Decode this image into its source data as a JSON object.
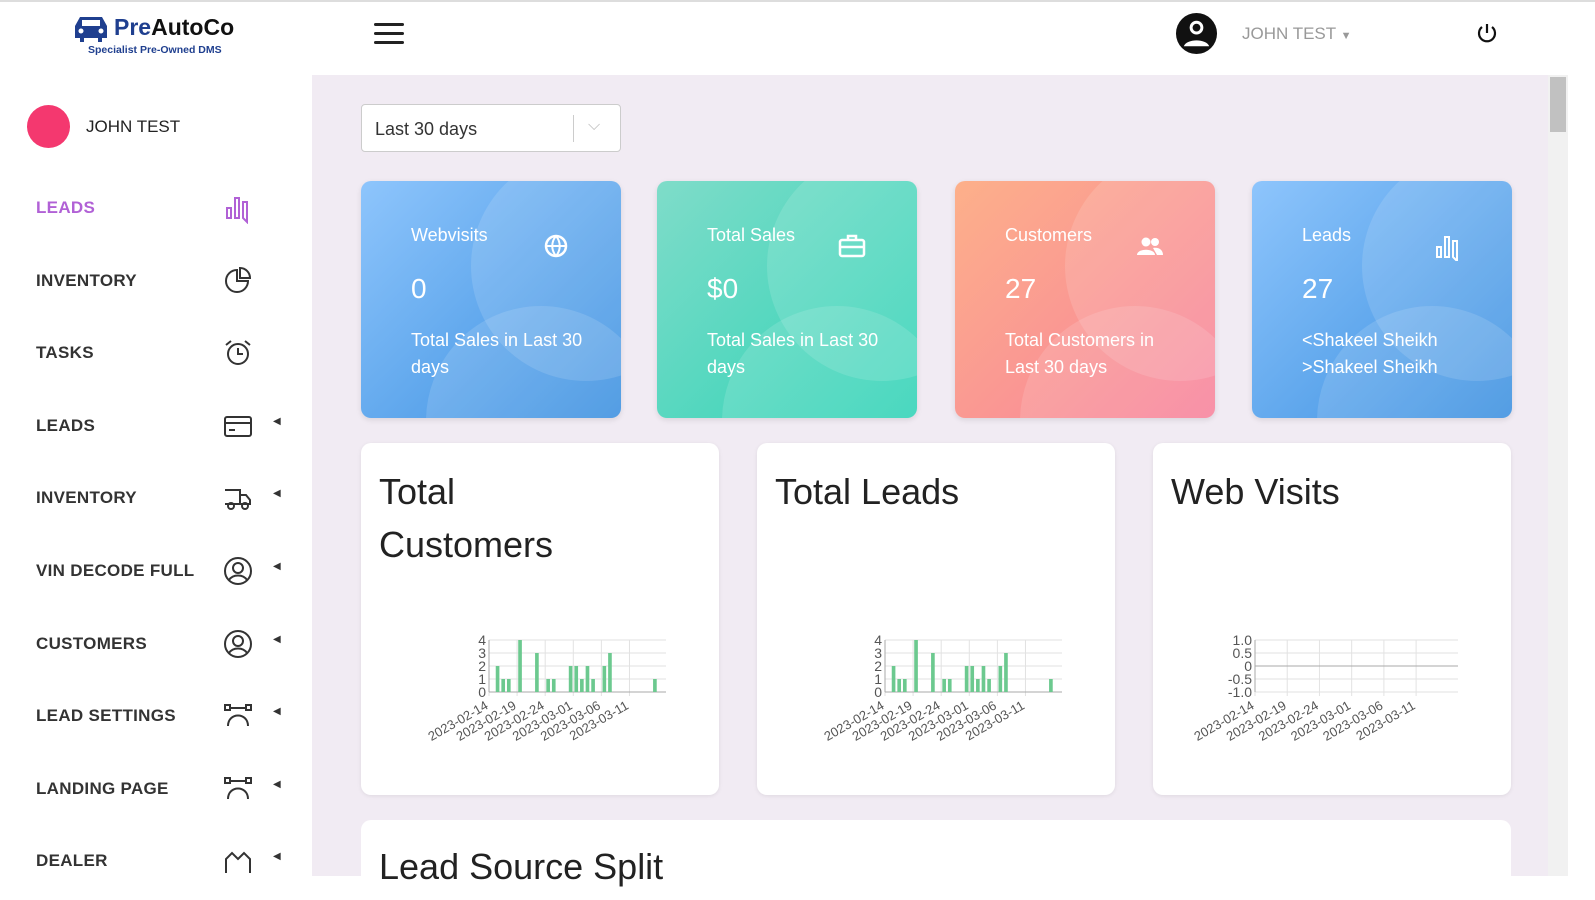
{
  "header": {
    "brand_pre": "Pre",
    "brand_rest": "AutoCo",
    "tagline": "Specialist Pre-Owned DMS",
    "user": "JOHN TEST"
  },
  "sidebar": {
    "user": "JOHN TEST",
    "items": [
      {
        "label": "LEADS",
        "icon": "bar-chart-icon",
        "active": true,
        "caret": false
      },
      {
        "label": "INVENTORY",
        "icon": "pie-chart-icon",
        "caret": false
      },
      {
        "label": "TASKS",
        "icon": "alarm-clock-icon",
        "caret": false
      },
      {
        "label": "LEADS",
        "icon": "credit-card-icon",
        "caret": true
      },
      {
        "label": "INVENTORY",
        "icon": "truck-icon",
        "caret": true
      },
      {
        "label": "VIN DECODE FULL",
        "icon": "user-circle-icon",
        "caret": true
      },
      {
        "label": "CUSTOMERS",
        "icon": "user-circle-icon",
        "caret": true
      },
      {
        "label": "LEAD SETTINGS",
        "icon": "bezier-icon",
        "caret": true
      },
      {
        "label": "LANDING PAGE",
        "icon": "bezier-icon",
        "caret": true
      },
      {
        "label": "DEALER",
        "icon": "building-icon",
        "caret": true
      }
    ]
  },
  "filter": {
    "value": "Last 30 days"
  },
  "stats": [
    {
      "title": "Webvisits",
      "value": "0",
      "sub": "Total Sales in Last 30 days",
      "icon": "globe-icon",
      "from": "#8ec5fc",
      "to": "#3a8fe0"
    },
    {
      "title": "Total Sales",
      "value": "$0",
      "sub": "Total Sales in Last 30 days",
      "icon": "briefcase-icon",
      "from": "#7fdcc9",
      "to": "#2fd3b6"
    },
    {
      "title": "Customers",
      "value": "27",
      "sub": "Total Customers in Last 30 days",
      "icon": "users-icon",
      "from": "#fdb08a",
      "to": "#f7819b"
    },
    {
      "title": "Leads",
      "value": "27",
      "sub": "<Shakeel Sheikh >Shakeel Sheikh",
      "icon": "bar-chart-icon",
      "from": "#8ec5fc",
      "to": "#3a8fe0"
    }
  ],
  "chart_data": [
    {
      "type": "bar",
      "title": "Total Customers",
      "x": [
        "2023-02-15",
        "2023-02-16",
        "2023-02-17",
        "2023-02-19",
        "2023-02-22",
        "2023-02-24",
        "2023-02-25",
        "2023-02-28",
        "2023-03-01",
        "2023-03-02",
        "2023-03-03",
        "2023-03-04",
        "2023-03-06",
        "2023-03-07",
        "2023-03-15"
      ],
      "values": [
        2,
        1,
        1,
        4,
        3,
        1,
        1,
        2,
        2,
        1,
        2,
        1,
        2,
        3,
        1
      ],
      "xticks": [
        "2023-02-14",
        "2023-02-19",
        "2023-02-24",
        "2023-03-01",
        "2023-03-06",
        "2023-03-11"
      ],
      "yticks": [
        "0",
        "1",
        "2",
        "3",
        "4"
      ],
      "ylim": [
        0,
        4
      ],
      "color": "#6cc98f"
    },
    {
      "type": "bar",
      "title": "Total Leads",
      "x": [
        "2023-02-15",
        "2023-02-16",
        "2023-02-17",
        "2023-02-19",
        "2023-02-22",
        "2023-02-24",
        "2023-02-25",
        "2023-02-28",
        "2023-03-01",
        "2023-03-02",
        "2023-03-03",
        "2023-03-04",
        "2023-03-06",
        "2023-03-07",
        "2023-03-15"
      ],
      "values": [
        2,
        1,
        1,
        4,
        3,
        1,
        1,
        2,
        2,
        1,
        2,
        1,
        2,
        3,
        1
      ],
      "xticks": [
        "2023-02-14",
        "2023-02-19",
        "2023-02-24",
        "2023-03-01",
        "2023-03-06",
        "2023-03-11"
      ],
      "yticks": [
        "0",
        "1",
        "2",
        "3",
        "4"
      ],
      "ylim": [
        0,
        4
      ],
      "color": "#6cc98f"
    },
    {
      "type": "line",
      "title": "Web Visits",
      "x": [],
      "values": [],
      "xticks": [
        "2023-02-14",
        "2023-02-19",
        "2023-02-24",
        "2023-03-01",
        "2023-03-06",
        "2023-03-11"
      ],
      "yticks": [
        "-1.0",
        "-0.5",
        "0",
        "0.5",
        "1.0"
      ],
      "ylim": [
        -1,
        1
      ],
      "color": "#6cc98f"
    }
  ],
  "bottom": {
    "title": "Lead Source Split"
  }
}
